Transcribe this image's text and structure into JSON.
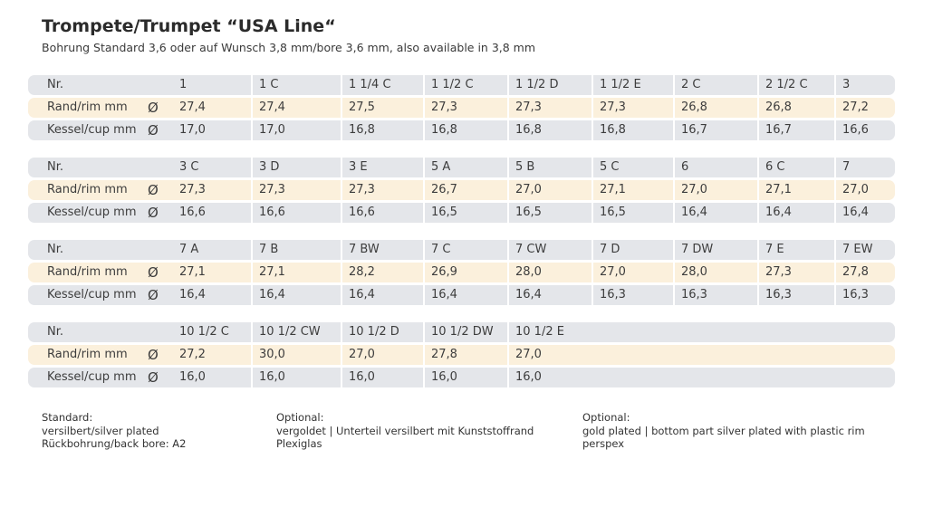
{
  "title": "Trompete/Trumpet “USA Line“",
  "subtitle": "Bohrung Standard 3,6 oder auf Wunsch 3,8 mm/bore 3,6 mm, also available in 3,8 mm",
  "diameter_symbol": "Ø",
  "tables": [
    {
      "nr_label": "Nr.",
      "rim_label": "Rand/rim mm",
      "cup_label": "Kessel/cup mm",
      "models": [
        "1",
        "1 C",
        "1 1/4 C",
        "1 1/2 C",
        "1 1/2 D",
        "1 1/2 E",
        "2 C",
        "2 1/2 C",
        "3"
      ],
      "rim": [
        "27,4",
        "27,4",
        "27,5",
        "27,3",
        "27,3",
        "27,3",
        "26,8",
        "26,8",
        "27,2"
      ],
      "cup": [
        "17,0",
        "17,0",
        "16,8",
        "16,8",
        "16,8",
        "16,8",
        "16,7",
        "16,7",
        "16,6"
      ]
    },
    {
      "nr_label": "Nr.",
      "rim_label": "Rand/rim mm",
      "cup_label": "Kessel/cup mm",
      "models": [
        "3 C",
        "3 D",
        "3 E",
        "5 A",
        "5 B",
        "5 C",
        "6",
        "6 C",
        "7"
      ],
      "rim": [
        "27,3",
        "27,3",
        "27,3",
        "26,7",
        "27,0",
        "27,1",
        "27,0",
        "27,1",
        "27,0"
      ],
      "cup": [
        "16,6",
        "16,6",
        "16,6",
        "16,5",
        "16,5",
        "16,5",
        "16,4",
        "16,4",
        "16,4"
      ]
    },
    {
      "nr_label": "Nr.",
      "rim_label": "Rand/rim mm",
      "cup_label": "Kessel/cup mm",
      "models": [
        "7 A",
        "7 B",
        "7 BW",
        "7 C",
        "7 CW",
        "7 D",
        "7 DW",
        "7 E",
        "7 EW"
      ],
      "rim": [
        "27,1",
        "27,1",
        "28,2",
        "26,9",
        "28,0",
        "27,0",
        "28,0",
        "27,3",
        "27,8"
      ],
      "cup": [
        "16,4",
        "16,4",
        "16,4",
        "16,4",
        "16,4",
        "16,3",
        "16,3",
        "16,3",
        "16,3"
      ]
    },
    {
      "nr_label": "Nr.",
      "rim_label": "Rand/rim mm",
      "cup_label": "Kessel/cup mm",
      "models": [
        "10 1/2 C",
        "10 1/2 CW",
        "10 1/2 D",
        "10 1/2 DW",
        "10 1/2 E"
      ],
      "rim": [
        "27,2",
        "30,0",
        "27,0",
        "27,8",
        "27,0"
      ],
      "cup": [
        "16,0",
        "16,0",
        "16,0",
        "16,0",
        "16,0"
      ]
    }
  ],
  "footer": {
    "standard": [
      "Standard:",
      "versilbert/silver plated",
      "Rückbohrung/back bore: A2"
    ],
    "optional_de": [
      "Optional:",
      "vergoldet | Unterteil versilbert mit Kunststoffrand",
      "Plexiglas"
    ],
    "optional_en": [
      "Optional:",
      "gold plated | bottom part silver plated with plastic rim",
      "perspex"
    ]
  }
}
